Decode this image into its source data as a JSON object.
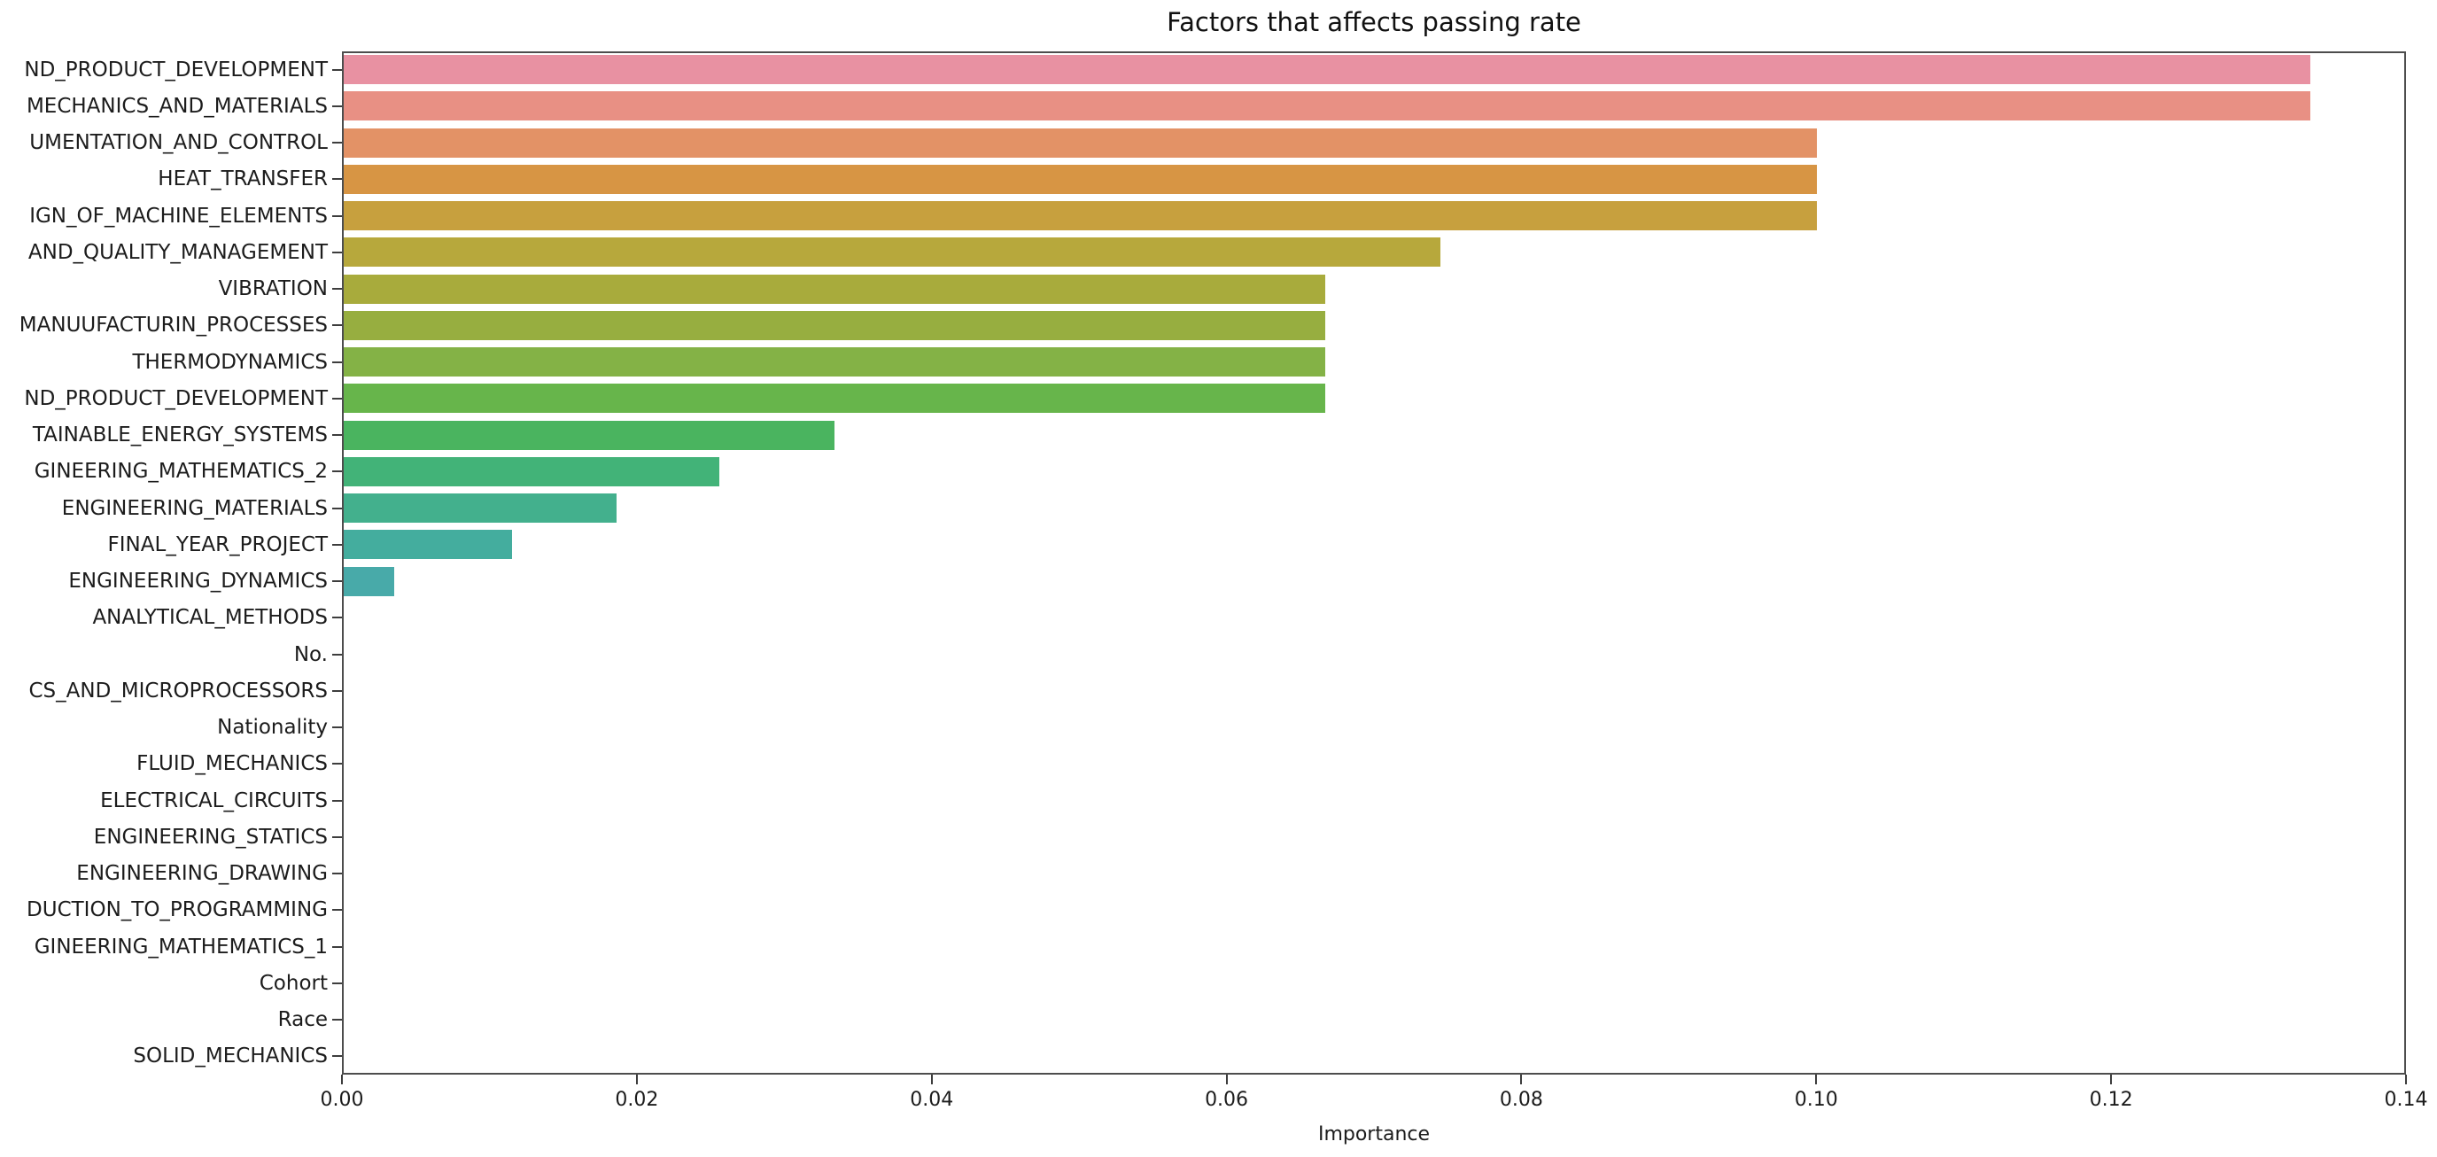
{
  "chart_data": {
    "type": "bar",
    "orientation": "horizontal",
    "title": "Factors that affects passing rate",
    "xlabel": "Importance",
    "ylabel": "",
    "xlim": [
      0,
      0.14
    ],
    "grid": false,
    "legend": "none",
    "xtick_labels": [
      "0.00",
      "0.02",
      "0.04",
      "0.06",
      "0.08",
      "0.10",
      "0.12",
      "0.14"
    ],
    "xtick_values": [
      0.0,
      0.02,
      0.04,
      0.06,
      0.08,
      0.1,
      0.12,
      0.14
    ],
    "categories": [
      "ND_PRODUCT_DEVELOPMENT",
      "MECHANICS_AND_MATERIALS",
      "UMENTATION_AND_CONTROL",
      "HEAT_TRANSFER",
      "IGN_OF_MACHINE_ELEMENTS",
      "AND_QUALITY_MANAGEMENT",
      "VIBRATION",
      "MANUUFACTURIN_PROCESSES",
      "THERMODYNAMICS",
      "ND_PRODUCT_DEVELOPMENT",
      "TAINABLE_ENERGY_SYSTEMS",
      "GINEERING_MATHEMATICS_2",
      "ENGINEERING_MATERIALS",
      "FINAL_YEAR_PROJECT",
      "ENGINEERING_DYNAMICS",
      "ANALYTICAL_METHODS",
      "No.",
      "CS_AND_MICROPROCESSORS",
      "Nationality",
      "FLUID_MECHANICS",
      "ELECTRICAL_CIRCUITS",
      "ENGINEERING_STATICS",
      "ENGINEERING_DRAWING",
      "DUCTION_TO_PROGRAMMING",
      "GINEERING_MATHEMATICS_1",
      "Cohort",
      "Race",
      "SOLID_MECHANICS"
    ],
    "values": [
      0.1334,
      0.1334,
      0.0999,
      0.0999,
      0.0999,
      0.0744,
      0.0666,
      0.0666,
      0.0666,
      0.0666,
      0.0333,
      0.0255,
      0.0185,
      0.0114,
      0.0034,
      0,
      0,
      0,
      0,
      0,
      0,
      0,
      0,
      0,
      0,
      0,
      0,
      0
    ],
    "bar_colors": [
      "#e891a2",
      "#e89084",
      "#e39266",
      "#d79544",
      "#c7a03e",
      "#b7a83c",
      "#a8ab3c",
      "#97ae40",
      "#84b246",
      "#67b54b",
      "#4ab45f",
      "#42b378",
      "#43b08d",
      "#44ad9e",
      "#48aaa9",
      null,
      null,
      null,
      null,
      null,
      null,
      null,
      null,
      null,
      null,
      null,
      null,
      null
    ],
    "spine_color": "#4d4d4d",
    "text_color": "#1c1c1c"
  }
}
